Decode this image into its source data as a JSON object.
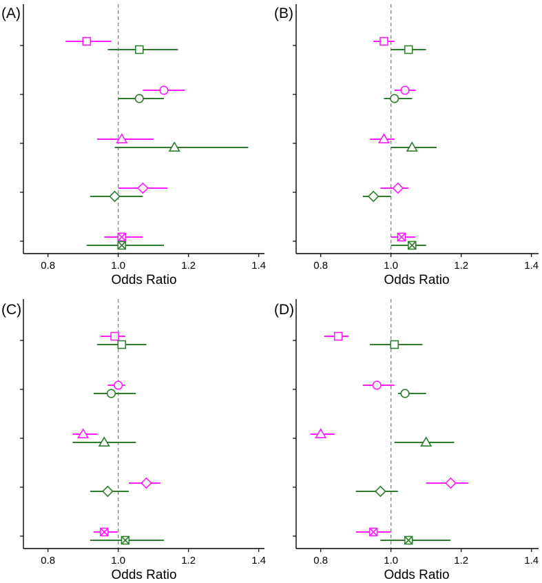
{
  "colors": {
    "series_a": "#ff1aff",
    "series_b": "#2e7d2e",
    "reference": "#8c8c8c"
  },
  "chart_data": [
    {
      "type": "forest",
      "panel_label": "(A)",
      "xlabel": "Odds Ratio",
      "xlim": [
        0.73,
        1.41
      ],
      "xticks": [
        0.8,
        1.0,
        1.2,
        1.4
      ],
      "xtick_labels": [
        "0.8",
        "1.0",
        "1.2",
        "1.4"
      ],
      "reference_line": 1.0,
      "groups": [
        "square",
        "circle",
        "triangle",
        "diamond",
        "crossed-square"
      ],
      "series": [
        {
          "name": "magenta",
          "color": "#ff1aff",
          "points": [
            {
              "marker": "square",
              "or": 0.91,
              "lo": 0.85,
              "hi": 0.98
            },
            {
              "marker": "circle",
              "or": 1.13,
              "lo": 1.07,
              "hi": 1.19
            },
            {
              "marker": "triangle",
              "or": 1.01,
              "lo": 0.94,
              "hi": 1.1
            },
            {
              "marker": "diamond",
              "or": 1.07,
              "lo": 1.0,
              "hi": 1.14
            },
            {
              "marker": "crossed-square",
              "or": 1.01,
              "lo": 0.96,
              "hi": 1.07
            }
          ]
        },
        {
          "name": "green",
          "color": "#2e7d2e",
          "points": [
            {
              "marker": "square",
              "or": 1.06,
              "lo": 0.97,
              "hi": 1.17
            },
            {
              "marker": "circle",
              "or": 1.06,
              "lo": 1.0,
              "hi": 1.13
            },
            {
              "marker": "triangle",
              "or": 1.16,
              "lo": 0.99,
              "hi": 1.37
            },
            {
              "marker": "diamond",
              "or": 0.99,
              "lo": 0.92,
              "hi": 1.07
            },
            {
              "marker": "crossed-square",
              "or": 1.01,
              "lo": 0.91,
              "hi": 1.13
            }
          ]
        }
      ]
    },
    {
      "type": "forest",
      "panel_label": "(B)",
      "xlabel": "Odds Ratio",
      "xlim": [
        0.73,
        1.41
      ],
      "xticks": [
        0.8,
        1.0,
        1.2,
        1.4
      ],
      "xtick_labels": [
        "0.8",
        "1.0",
        "1.2",
        "1.4"
      ],
      "reference_line": 1.0,
      "groups": [
        "square",
        "circle",
        "triangle",
        "diamond",
        "crossed-square"
      ],
      "series": [
        {
          "name": "magenta",
          "color": "#ff1aff",
          "points": [
            {
              "marker": "square",
              "or": 0.98,
              "lo": 0.95,
              "hi": 1.01
            },
            {
              "marker": "circle",
              "or": 1.04,
              "lo": 1.01,
              "hi": 1.07
            },
            {
              "marker": "triangle",
              "or": 0.98,
              "lo": 0.94,
              "hi": 1.01
            },
            {
              "marker": "diamond",
              "or": 1.02,
              "lo": 0.97,
              "hi": 1.05
            },
            {
              "marker": "crossed-square",
              "or": 1.03,
              "lo": 1.0,
              "hi": 1.07
            }
          ]
        },
        {
          "name": "green",
          "color": "#2e7d2e",
          "points": [
            {
              "marker": "square",
              "or": 1.05,
              "lo": 1.0,
              "hi": 1.1
            },
            {
              "marker": "circle",
              "or": 1.01,
              "lo": 0.98,
              "hi": 1.06
            },
            {
              "marker": "triangle",
              "or": 1.06,
              "lo": 1.0,
              "hi": 1.13
            },
            {
              "marker": "diamond",
              "or": 0.95,
              "lo": 0.92,
              "hi": 1.0
            },
            {
              "marker": "crossed-square",
              "or": 1.06,
              "lo": 1.0,
              "hi": 1.1
            }
          ]
        }
      ]
    },
    {
      "type": "forest",
      "panel_label": "(C)",
      "xlabel": "Odds Ratio",
      "xlim": [
        0.73,
        1.41
      ],
      "xticks": [
        0.8,
        1.0,
        1.2,
        1.4
      ],
      "xtick_labels": [
        "0.8",
        "1.0",
        "1.2",
        "1.4"
      ],
      "reference_line": 1.0,
      "groups": [
        "square",
        "circle",
        "triangle",
        "diamond",
        "crossed-square"
      ],
      "series": [
        {
          "name": "magenta",
          "color": "#ff1aff",
          "points": [
            {
              "marker": "square",
              "or": 0.99,
              "lo": 0.95,
              "hi": 1.02
            },
            {
              "marker": "circle",
              "or": 1.0,
              "lo": 0.97,
              "hi": 1.02
            },
            {
              "marker": "triangle",
              "or": 0.9,
              "lo": 0.87,
              "hi": 0.94
            },
            {
              "marker": "diamond",
              "or": 1.08,
              "lo": 1.03,
              "hi": 1.12
            },
            {
              "marker": "crossed-square",
              "or": 0.96,
              "lo": 0.93,
              "hi": 1.0
            }
          ]
        },
        {
          "name": "green",
          "color": "#2e7d2e",
          "points": [
            {
              "marker": "square",
              "or": 1.01,
              "lo": 0.94,
              "hi": 1.08
            },
            {
              "marker": "circle",
              "or": 0.98,
              "lo": 0.93,
              "hi": 1.05
            },
            {
              "marker": "triangle",
              "or": 0.96,
              "lo": 0.87,
              "hi": 1.05
            },
            {
              "marker": "diamond",
              "or": 0.97,
              "lo": 0.92,
              "hi": 1.03
            },
            {
              "marker": "crossed-square",
              "or": 1.02,
              "lo": 0.92,
              "hi": 1.13
            }
          ]
        }
      ]
    },
    {
      "type": "forest",
      "panel_label": "(D)",
      "xlabel": "Odds Ratio",
      "xlim": [
        0.73,
        1.41
      ],
      "xticks": [
        0.8,
        1.0,
        1.2,
        1.4
      ],
      "xtick_labels": [
        "0.8",
        "1.0",
        "1.2",
        "1.4"
      ],
      "reference_line": 1.0,
      "groups": [
        "square",
        "circle",
        "triangle",
        "diamond",
        "crossed-square"
      ],
      "series": [
        {
          "name": "magenta",
          "color": "#ff1aff",
          "points": [
            {
              "marker": "square",
              "or": 0.85,
              "lo": 0.81,
              "hi": 0.88
            },
            {
              "marker": "circle",
              "or": 0.96,
              "lo": 0.92,
              "hi": 1.01
            },
            {
              "marker": "triangle",
              "or": 0.8,
              "lo": 0.77,
              "hi": 0.84
            },
            {
              "marker": "diamond",
              "or": 1.17,
              "lo": 1.1,
              "hi": 1.22
            },
            {
              "marker": "crossed-square",
              "or": 0.95,
              "lo": 0.9,
              "hi": 1.0
            }
          ]
        },
        {
          "name": "green",
          "color": "#2e7d2e",
          "points": [
            {
              "marker": "square",
              "or": 1.01,
              "lo": 0.94,
              "hi": 1.09
            },
            {
              "marker": "circle",
              "or": 1.04,
              "lo": 1.02,
              "hi": 1.1
            },
            {
              "marker": "triangle",
              "or": 1.1,
              "lo": 1.01,
              "hi": 1.18
            },
            {
              "marker": "diamond",
              "or": 0.97,
              "lo": 0.9,
              "hi": 1.02
            },
            {
              "marker": "crossed-square",
              "or": 1.05,
              "lo": 0.97,
              "hi": 1.17
            }
          ]
        }
      ]
    }
  ]
}
